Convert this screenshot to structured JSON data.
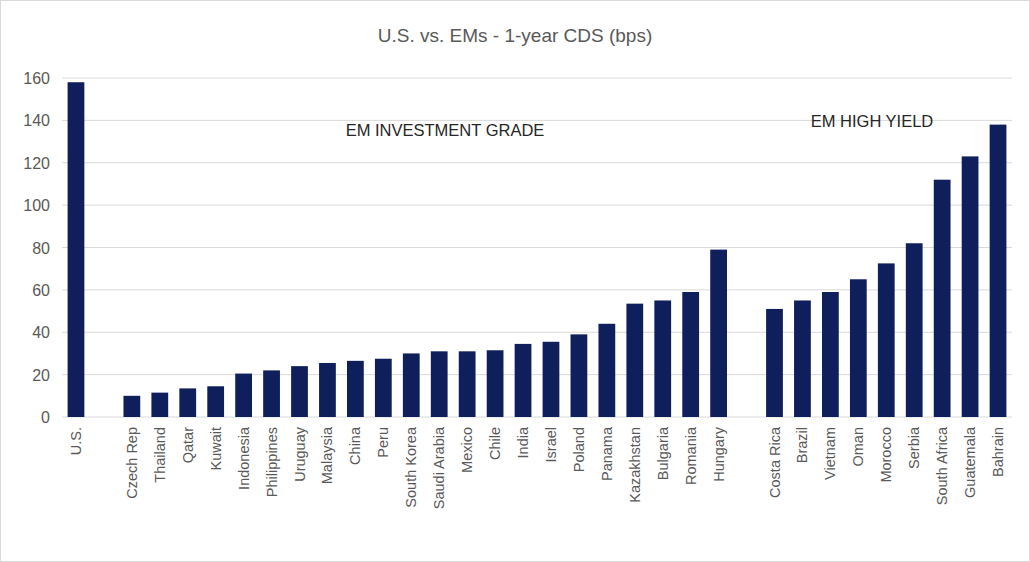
{
  "chart_data": {
    "type": "bar",
    "title": "U.S. vs. EMs - 1-year CDS (bps)",
    "categories": [
      "U.S.",
      null,
      "Czech Rep",
      "Thailand",
      "Qatar",
      "Kuwait",
      "Indonesia",
      "Philippines",
      "Uruguay",
      "Malaysia",
      "China",
      "Peru",
      "South Korea",
      "Saudi Arabia",
      "Mexico",
      "Chile",
      "India",
      "Israel",
      "Poland",
      "Panama",
      "Kazakhstan",
      "Bulgaria",
      "Romania",
      "Hungary",
      null,
      "Costa Rica",
      "Brazil",
      "Vietnam",
      "Oman",
      "Morocco",
      "Serbia",
      "South Africa",
      "Guatemala",
      "Bahrain"
    ],
    "values": [
      158,
      null,
      10,
      11.5,
      13.5,
      14.5,
      20.5,
      22,
      24,
      25.5,
      26.5,
      27.5,
      30,
      31,
      31,
      31.5,
      34.5,
      35.5,
      39,
      44,
      53.5,
      55,
      59,
      79,
      null,
      51,
      55,
      59,
      65,
      72.5,
      82,
      112,
      123,
      138
    ],
    "color": "#0f1f5c",
    "annotations": [
      "EM INVESTMENT GRADE",
      "EM HIGH YIELD"
    ],
    "ylim": [
      0,
      160
    ],
    "yticks": [
      0,
      20,
      40,
      60,
      80,
      100,
      120,
      140,
      160
    ],
    "grid": true
  }
}
